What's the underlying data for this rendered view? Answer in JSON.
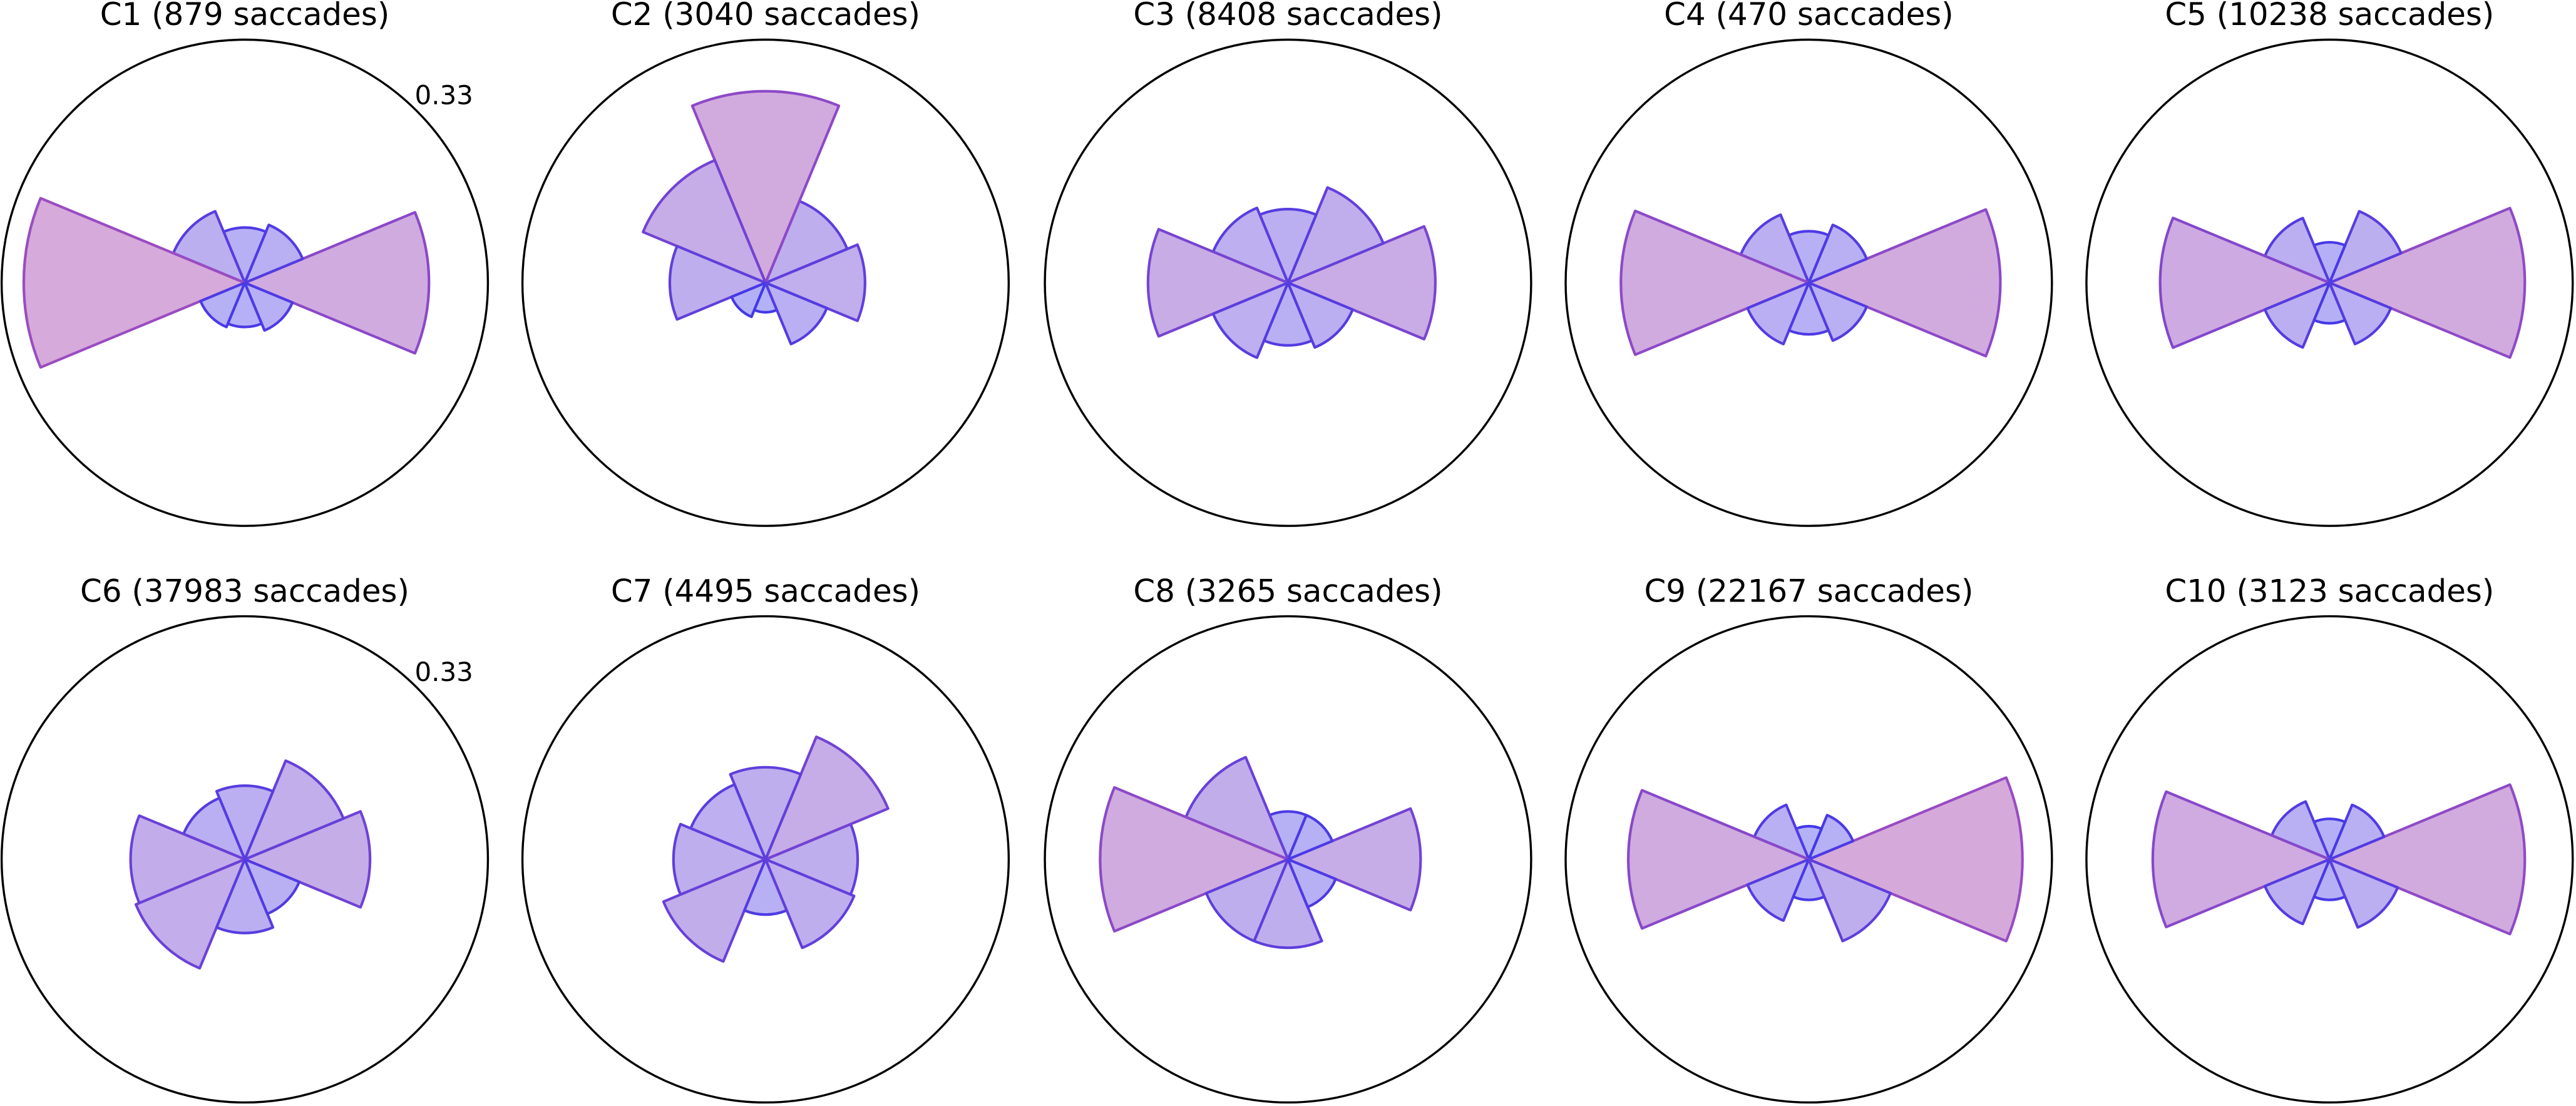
{
  "chart_data": [
    {
      "type": "polar_bar",
      "title": "C1 (879 saccades)",
      "theta": [
        0,
        45,
        90,
        135,
        180,
        225,
        270,
        315
      ],
      "values": [
        0.25,
        0.085,
        0.075,
        0.105,
        0.3,
        0.065,
        0.06,
        0.07
      ],
      "rlim": [
        0,
        0.33
      ],
      "rticks": [
        0.33
      ],
      "fill_low": "#a9aefc",
      "fill_high": "#d4a5d8",
      "edge_low": "#3535ee",
      "edge_high": "#9a4cc2"
    },
    {
      "type": "polar_bar",
      "title": "C2 (3040 saccades)",
      "theta": [
        0,
        45,
        90,
        135,
        180,
        225,
        270,
        315
      ],
      "values": [
        0.135,
        0.12,
        0.26,
        0.18,
        0.13,
        0.05,
        0.04,
        0.09
      ],
      "rlim": [
        0,
        0.33
      ],
      "fill_low": "#a9aefc",
      "fill_high": "#d4a5d8",
      "edge_low": "#3535ee",
      "edge_high": "#9a4cc2"
    },
    {
      "type": "polar_bar",
      "title": "C3 (8408 saccades)",
      "theta": [
        0,
        45,
        90,
        135,
        180,
        225,
        270,
        315
      ],
      "values": [
        0.2,
        0.14,
        0.1,
        0.11,
        0.19,
        0.11,
        0.085,
        0.095
      ],
      "rlim": [
        0,
        0.33
      ],
      "fill_low": "#a9aefc",
      "fill_high": "#d4a5d8",
      "edge_low": "#3535ee",
      "edge_high": "#9a4cc2"
    },
    {
      "type": "polar_bar",
      "title": "C4 (470 saccades)",
      "theta": [
        0,
        45,
        90,
        135,
        180,
        225,
        270,
        315
      ],
      "values": [
        0.26,
        0.085,
        0.07,
        0.1,
        0.255,
        0.09,
        0.07,
        0.085
      ],
      "rlim": [
        0,
        0.33
      ],
      "fill_low": "#a9aefc",
      "fill_high": "#d4a5d8",
      "edge_low": "#3535ee",
      "edge_high": "#9a4cc2"
    },
    {
      "type": "polar_bar",
      "title": "C5 (10238 saccades)",
      "theta": [
        0,
        45,
        90,
        135,
        180,
        225,
        270,
        315
      ],
      "values": [
        0.265,
        0.105,
        0.055,
        0.095,
        0.23,
        0.095,
        0.055,
        0.09
      ],
      "rlim": [
        0,
        0.33
      ],
      "fill_low": "#a9aefc",
      "fill_high": "#d4a5d8",
      "edge_low": "#3535ee",
      "edge_high": "#9a4cc2"
    },
    {
      "type": "polar_bar",
      "title": "C6 (37983 saccades)",
      "theta": [
        0,
        45,
        90,
        135,
        180,
        225,
        270,
        315
      ],
      "values": [
        0.17,
        0.145,
        0.1,
        0.09,
        0.155,
        0.16,
        0.1,
        0.08
      ],
      "rlim": [
        0,
        0.33
      ],
      "rticks": [
        0.33
      ],
      "fill_low": "#a9aefc",
      "fill_high": "#d4a5d8",
      "edge_low": "#3535ee",
      "edge_high": "#9a4cc2"
    },
    {
      "type": "polar_bar",
      "title": "C7 (4495 saccades)",
      "theta": [
        0,
        45,
        90,
        135,
        180,
        225,
        270,
        315
      ],
      "values": [
        0.125,
        0.18,
        0.125,
        0.11,
        0.125,
        0.15,
        0.075,
        0.13
      ],
      "rlim": [
        0,
        0.33
      ],
      "fill_low": "#a9aefc",
      "fill_high": "#d4a5d8",
      "edge_low": "#3535ee",
      "edge_high": "#9a4cc2"
    },
    {
      "type": "polar_bar",
      "title": "C8 (3265 saccades)",
      "theta": [
        0,
        45,
        90,
        135,
        180,
        225,
        270,
        315
      ],
      "values": [
        0.18,
        0.065,
        0.065,
        0.15,
        0.255,
        0.12,
        0.12,
        0.07
      ],
      "rlim": [
        0,
        0.33
      ],
      "fill_low": "#a9aefc",
      "fill_high": "#d4a5d8",
      "edge_low": "#3535ee",
      "edge_high": "#9a4cc2"
    },
    {
      "type": "polar_bar",
      "title": "C9 (22167 saccades)",
      "theta": [
        0,
        45,
        90,
        135,
        180,
        225,
        270,
        315
      ],
      "values": [
        0.29,
        0.065,
        0.045,
        0.08,
        0.245,
        0.09,
        0.055,
        0.12
      ],
      "rlim": [
        0,
        0.33
      ],
      "fill_low": "#a9aefc",
      "fill_high": "#d4a5d8",
      "edge_low": "#3535ee",
      "edge_high": "#9a4cc2"
    },
    {
      "type": "polar_bar",
      "title": "C10 (3123 saccades)",
      "theta": [
        0,
        45,
        90,
        135,
        180,
        225,
        270,
        315
      ],
      "values": [
        0.265,
        0.08,
        0.055,
        0.085,
        0.24,
        0.095,
        0.055,
        0.1
      ],
      "rlim": [
        0,
        0.33
      ],
      "fill_low": "#a9aefc",
      "fill_high": "#d4a5d8",
      "edge_low": "#3535ee",
      "edge_high": "#9a4cc2"
    }
  ]
}
